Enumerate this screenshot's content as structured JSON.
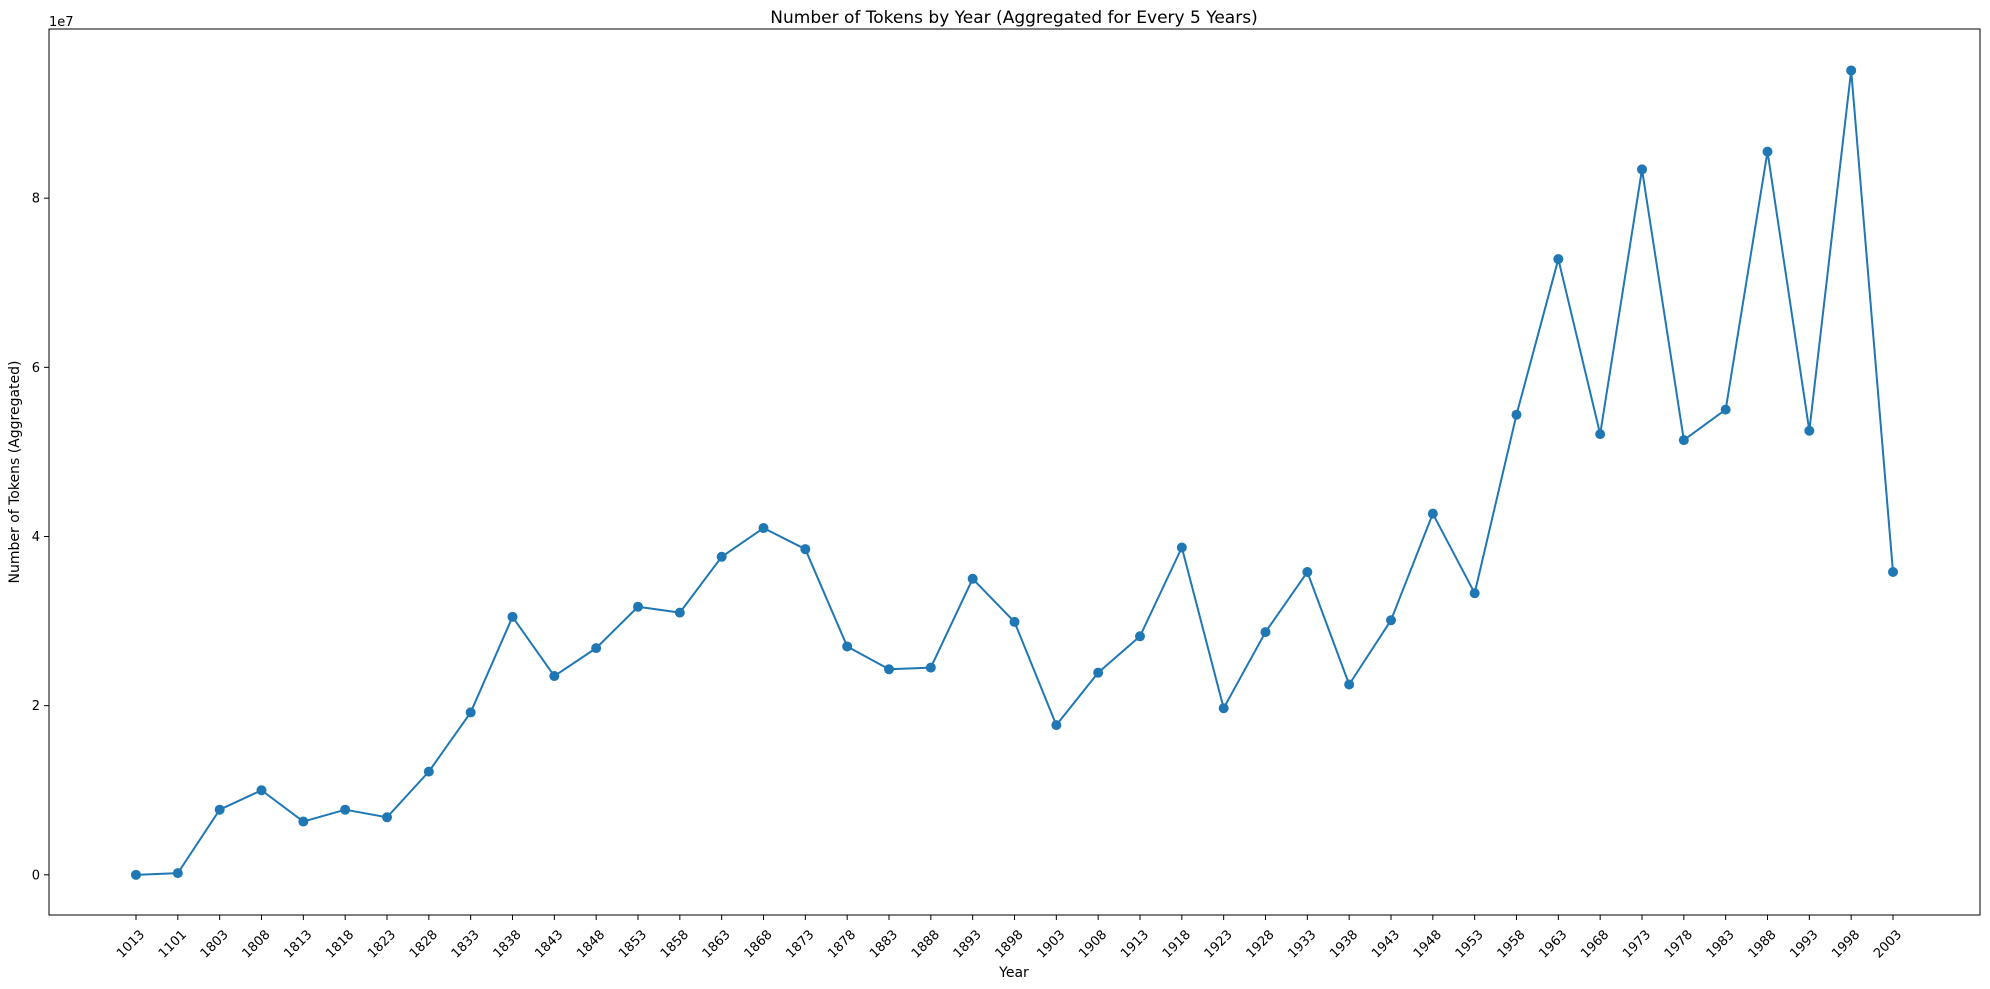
{
  "chart_data": {
    "type": "line",
    "title": "Number of Tokens by Year (Aggregated for Every 5 Years)",
    "xlabel": "Year",
    "ylabel": "Number of Tokens (Aggregated)",
    "y_offset_label": "1e7",
    "x_scale": "categorical",
    "categories": [
      "1013",
      "1101",
      "1803",
      "1808",
      "1813",
      "1818",
      "1823",
      "1828",
      "1833",
      "1838",
      "1843",
      "1848",
      "1853",
      "1858",
      "1863",
      "1868",
      "1873",
      "1878",
      "1883",
      "1888",
      "1893",
      "1898",
      "1903",
      "1908",
      "1913",
      "1918",
      "1923",
      "1928",
      "1933",
      "1938",
      "1943",
      "1948",
      "1953",
      "1958",
      "1963",
      "1968",
      "1973",
      "1978",
      "1983",
      "1988",
      "1993",
      "1998",
      "2003"
    ],
    "series": [
      {
        "values": [
          0,
          200000,
          7700000,
          10000000,
          6300000,
          7700000,
          6800000,
          12200000,
          19200000,
          30500000,
          23500000,
          26800000,
          31700000,
          31000000,
          37600000,
          41000000,
          38500000,
          27000000,
          24300000,
          24500000,
          35000000,
          29900000,
          17700000,
          23900000,
          28200000,
          38700000,
          19700000,
          28700000,
          35800000,
          22500000,
          30100000,
          42700000,
          33300000,
          54400000,
          72800000,
          52100000,
          83400000,
          51400000,
          55000000,
          85500000,
          52500000,
          95100000,
          35800000
        ]
      }
    ],
    "yticks": [
      0,
      20000000,
      40000000,
      60000000,
      80000000
    ],
    "ytick_labels": [
      "0",
      "2",
      "4",
      "6",
      "8"
    ],
    "ylim": [
      -4750000,
      100000000
    ],
    "grid": false,
    "legend": "none",
    "colors": {
      "line": "#1f77b4",
      "marker": "#1f77b4",
      "axes": "#000000",
      "background": "#ffffff"
    }
  }
}
